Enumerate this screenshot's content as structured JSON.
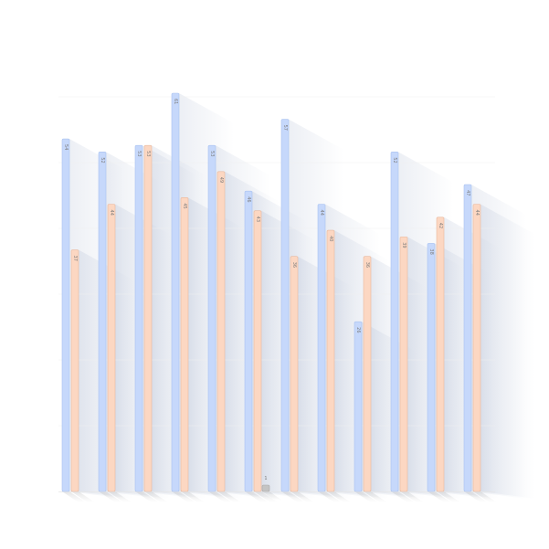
{
  "chart_data": {
    "type": "bar",
    "categories": [
      "",
      "",
      "",
      "",
      "",
      "",
      "",
      "",
      "",
      "",
      "",
      ""
    ],
    "series": [
      {
        "values": [
          54,
          52,
          53,
          61,
          53,
          46,
          57,
          44,
          26,
          52,
          38,
          47
        ],
        "labels": [
          "54",
          "52",
          "53",
          "61",
          "53",
          "46",
          "57",
          "44",
          "26",
          "52",
          "38",
          "47"
        ],
        "color": "#c6d8fb",
        "stroke": "#a9c2f0"
      },
      {
        "values": [
          37,
          44,
          53,
          45,
          49,
          43,
          36,
          40,
          36,
          39,
          42,
          44
        ],
        "labels": [
          "37",
          "44",
          "53",
          "45",
          "49",
          "43",
          "36",
          "40",
          "36",
          "39",
          "42",
          "44"
        ],
        "color": "#fcd7c2",
        "stroke": "#e9b89d"
      },
      {
        "values": [
          null,
          null,
          null,
          null,
          null,
          1,
          null,
          null,
          null,
          null,
          null,
          null
        ],
        "labels": [
          "",
          "",
          "",
          "",
          "",
          "1",
          "",
          "",
          "",
          "",
          "",
          ""
        ],
        "color": "#c4c4c4",
        "stroke": "#aaaaaa"
      }
    ],
    "ylim": [
      0,
      61
    ],
    "grid": true,
    "legend": "none",
    "colors": {
      "label_text": "#7a7a7a",
      "grid": "#f0f0f0",
      "axis": "#e6e6e6",
      "shadow": "#8a9bbd"
    }
  }
}
